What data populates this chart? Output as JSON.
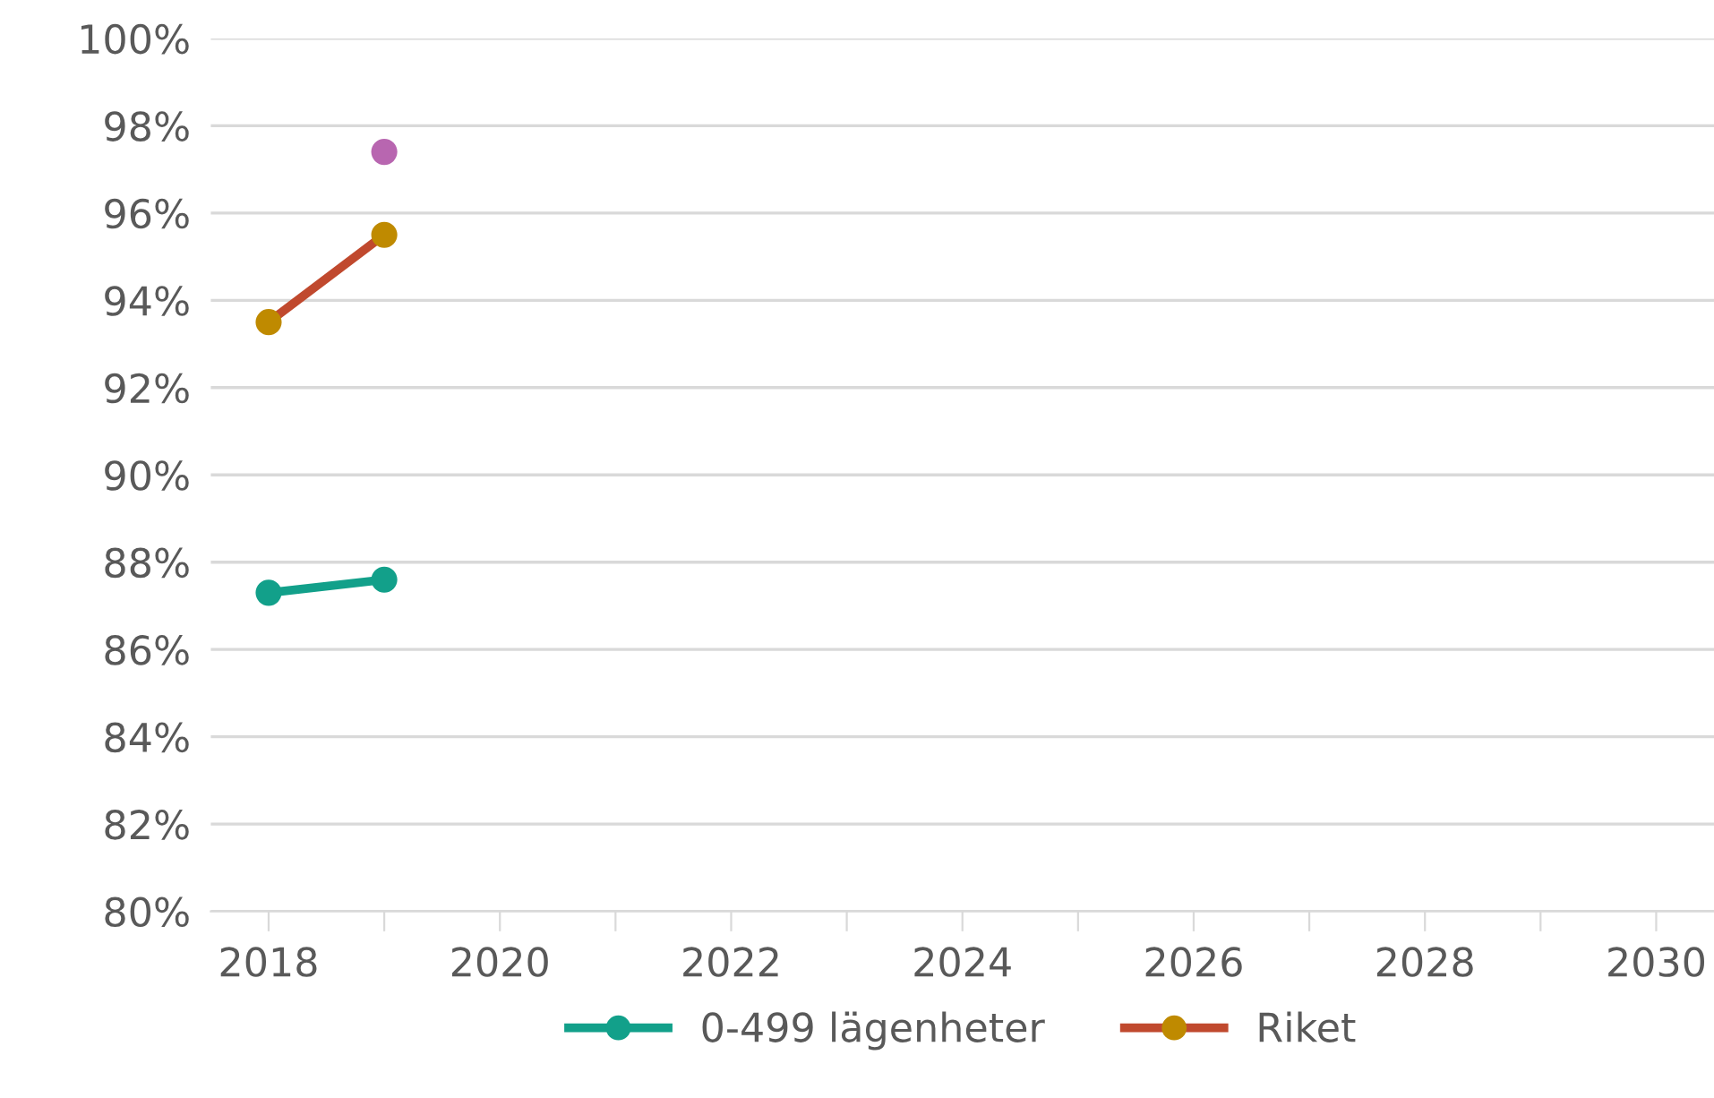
{
  "chart_data": {
    "type": "line",
    "x": [
      2018,
      2019
    ],
    "series": [
      {
        "color": "#b866b0",
        "values": [
          null,
          97.4
        ]
      },
      {
        "name": "0-499 lägenheter",
        "color": "#12a08a",
        "values": [
          87.3,
          87.6
        ]
      },
      {
        "name": "Riket",
        "color": "#c0492e",
        "colors": [
          "#bf8a00",
          "#bf8a00"
        ],
        "values": [
          93.5,
          95.5
        ]
      }
    ],
    "xlim": [
      2017.5,
      2030.5
    ],
    "xticks": [
      2018,
      {
        "value": 2019,
        "label": null
      },
      2020,
      {
        "value": 2021,
        "label": null
      },
      2022,
      {
        "value": 2023,
        "label": null
      },
      2024,
      {
        "value": 2025,
        "label": null
      },
      2026,
      {
        "value": 2027,
        "label": null
      },
      2028,
      {
        "value": 2029,
        "label": null
      },
      2030
    ],
    "ylim": [
      80,
      100
    ],
    "yticks": [
      {
        "value": 80,
        "label": "80%"
      },
      {
        "value": 82,
        "label": "82%"
      },
      {
        "value": 84,
        "label": "84%"
      },
      {
        "value": 86,
        "label": "86%"
      },
      {
        "value": 88,
        "label": "88%"
      },
      {
        "value": 90,
        "label": "90%"
      },
      {
        "value": 92,
        "label": "92%"
      },
      {
        "value": 94,
        "label": "94%"
      },
      {
        "value": 96,
        "label": "96%"
      },
      {
        "value": 98,
        "label": "98%"
      },
      {
        "value": 100,
        "label": "100%"
      }
    ],
    "grid": "y",
    "legend": "bottom",
    "marker": "circle",
    "line_style": "solid"
  }
}
